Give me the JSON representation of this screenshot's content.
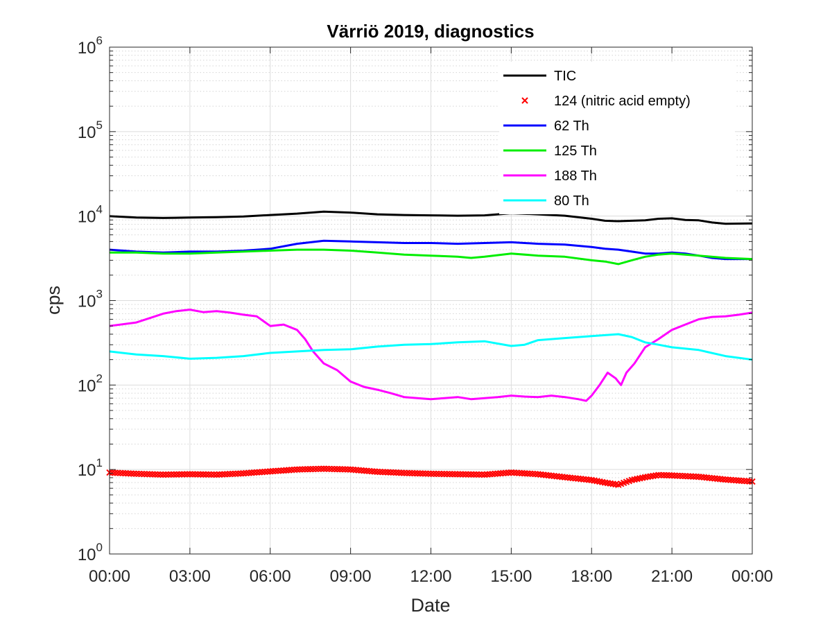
{
  "chart_data": {
    "type": "line",
    "title": "Värriö 2019, diagnostics",
    "xlabel": "Date",
    "ylabel": "cps",
    "yscale": "log",
    "ylim": [
      1,
      1000000
    ],
    "xlim": [
      0,
      24
    ],
    "grid": true,
    "legend_position": "top-right",
    "x_ticks": [
      0,
      3,
      6,
      9,
      12,
      15,
      18,
      21,
      24
    ],
    "x_tick_labels": [
      "00:00",
      "03:00",
      "06:00",
      "09:00",
      "12:00",
      "15:00",
      "18:00",
      "21:00",
      "00:00"
    ],
    "y_tick_exponents": [
      "0",
      "1",
      "2",
      "3",
      "4",
      "5",
      "6"
    ],
    "y_tick_base": "10",
    "series": [
      {
        "name": "TIC",
        "color": "#000000",
        "style": "line",
        "points": [
          [
            0,
            10000
          ],
          [
            1,
            9600
          ],
          [
            2,
            9500
          ],
          [
            3,
            9600
          ],
          [
            4,
            9700
          ],
          [
            5,
            9900
          ],
          [
            6,
            10300
          ],
          [
            7,
            10700
          ],
          [
            8,
            11300
          ],
          [
            9,
            11000
          ],
          [
            10,
            10500
          ],
          [
            11,
            10300
          ],
          [
            12,
            10200
          ],
          [
            13,
            10100
          ],
          [
            14,
            10200
          ],
          [
            15,
            10800
          ],
          [
            16,
            10500
          ],
          [
            17,
            10100
          ],
          [
            18,
            9300
          ],
          [
            18.5,
            8800
          ],
          [
            19,
            8700
          ],
          [
            20,
            8900
          ],
          [
            20.5,
            9300
          ],
          [
            21,
            9400
          ],
          [
            21.5,
            9000
          ],
          [
            22,
            8900
          ],
          [
            22.5,
            8400
          ],
          [
            23,
            8100
          ],
          [
            24,
            8200
          ]
        ]
      },
      {
        "name": "124 (nitric acid empty)",
        "color": "#ff0000",
        "style": "marker-x",
        "points": [
          [
            0,
            9.2
          ],
          [
            1,
            8.9
          ],
          [
            2,
            8.7
          ],
          [
            3,
            8.8
          ],
          [
            4,
            8.7
          ],
          [
            5,
            9.0
          ],
          [
            6,
            9.5
          ],
          [
            7,
            10.0
          ],
          [
            8,
            10.2
          ],
          [
            9,
            10.0
          ],
          [
            10,
            9.4
          ],
          [
            11,
            9.1
          ],
          [
            12,
            8.9
          ],
          [
            13,
            8.8
          ],
          [
            14,
            8.7
          ],
          [
            15,
            9.2
          ],
          [
            16,
            8.8
          ],
          [
            17,
            8.1
          ],
          [
            18,
            7.5
          ],
          [
            18.5,
            7.0
          ],
          [
            19,
            6.6
          ],
          [
            19.5,
            7.5
          ],
          [
            20,
            8.1
          ],
          [
            20.5,
            8.6
          ],
          [
            21,
            8.5
          ],
          [
            22,
            8.2
          ],
          [
            23,
            7.6
          ],
          [
            24,
            7.2
          ]
        ]
      },
      {
        "name": "62 Th",
        "color": "#0000ff",
        "style": "line",
        "points": [
          [
            0,
            4000
          ],
          [
            1,
            3800
          ],
          [
            2,
            3700
          ],
          [
            3,
            3800
          ],
          [
            4,
            3800
          ],
          [
            5,
            3900
          ],
          [
            6,
            4100
          ],
          [
            7,
            4700
          ],
          [
            8,
            5100
          ],
          [
            9,
            5000
          ],
          [
            10,
            4900
          ],
          [
            11,
            4800
          ],
          [
            12,
            4800
          ],
          [
            13,
            4700
          ],
          [
            14,
            4800
          ],
          [
            15,
            4900
          ],
          [
            16,
            4700
          ],
          [
            17,
            4600
          ],
          [
            18,
            4300
          ],
          [
            18.5,
            4100
          ],
          [
            19,
            4000
          ],
          [
            19.5,
            3800
          ],
          [
            20,
            3600
          ],
          [
            20.5,
            3600
          ],
          [
            21,
            3700
          ],
          [
            21.5,
            3600
          ],
          [
            22,
            3400
          ],
          [
            22.5,
            3200
          ],
          [
            23,
            3100
          ],
          [
            24,
            3100
          ]
        ]
      },
      {
        "name": "125 Th",
        "color": "#00ee00",
        "style": "line",
        "points": [
          [
            0,
            3700
          ],
          [
            1,
            3700
          ],
          [
            2,
            3600
          ],
          [
            3,
            3600
          ],
          [
            4,
            3700
          ],
          [
            5,
            3800
          ],
          [
            6,
            3900
          ],
          [
            7,
            4000
          ],
          [
            8,
            4000
          ],
          [
            9,
            3900
          ],
          [
            10,
            3700
          ],
          [
            11,
            3500
          ],
          [
            12,
            3400
          ],
          [
            13,
            3300
          ],
          [
            13.5,
            3200
          ],
          [
            14,
            3300
          ],
          [
            15,
            3600
          ],
          [
            16,
            3400
          ],
          [
            17,
            3300
          ],
          [
            18,
            3000
          ],
          [
            18.5,
            2900
          ],
          [
            19,
            2700
          ],
          [
            19.5,
            3000
          ],
          [
            20,
            3300
          ],
          [
            20.5,
            3500
          ],
          [
            21,
            3600
          ],
          [
            21.5,
            3500
          ],
          [
            22,
            3400
          ],
          [
            23,
            3200
          ],
          [
            24,
            3100
          ]
        ]
      },
      {
        "name": "188 Th",
        "color": "#ff00ff",
        "style": "line",
        "points": [
          [
            0,
            500
          ],
          [
            1,
            550
          ],
          [
            1.5,
            620
          ],
          [
            2,
            700
          ],
          [
            2.5,
            750
          ],
          [
            3,
            780
          ],
          [
            3.5,
            730
          ],
          [
            4,
            750
          ],
          [
            4.5,
            720
          ],
          [
            5,
            680
          ],
          [
            5.5,
            650
          ],
          [
            6,
            500
          ],
          [
            6.5,
            520
          ],
          [
            7,
            450
          ],
          [
            7.3,
            350
          ],
          [
            7.6,
            250
          ],
          [
            8,
            180
          ],
          [
            8.5,
            150
          ],
          [
            9,
            110
          ],
          [
            9.5,
            95
          ],
          [
            10,
            88
          ],
          [
            10.5,
            80
          ],
          [
            11,
            72
          ],
          [
            11.5,
            70
          ],
          [
            12,
            68
          ],
          [
            12.5,
            70
          ],
          [
            13,
            72
          ],
          [
            13.5,
            68
          ],
          [
            14,
            70
          ],
          [
            14.5,
            72
          ],
          [
            15,
            75
          ],
          [
            15.5,
            73
          ],
          [
            16,
            72
          ],
          [
            16.5,
            75
          ],
          [
            17,
            72
          ],
          [
            17.5,
            68
          ],
          [
            17.8,
            65
          ],
          [
            18,
            75
          ],
          [
            18.3,
            100
          ],
          [
            18.6,
            140
          ],
          [
            18.9,
            120
          ],
          [
            19.1,
            100
          ],
          [
            19.3,
            140
          ],
          [
            19.6,
            180
          ],
          [
            20,
            280
          ],
          [
            20.5,
            350
          ],
          [
            21,
            450
          ],
          [
            21.5,
            520
          ],
          [
            22,
            600
          ],
          [
            22.5,
            640
          ],
          [
            23,
            650
          ],
          [
            23.5,
            680
          ],
          [
            24,
            720
          ]
        ]
      },
      {
        "name": "80 Th",
        "color": "#00ffff",
        "style": "line",
        "points": [
          [
            0,
            250
          ],
          [
            1,
            230
          ],
          [
            2,
            220
          ],
          [
            3,
            205
          ],
          [
            4,
            210
          ],
          [
            5,
            220
          ],
          [
            6,
            240
          ],
          [
            7,
            250
          ],
          [
            8,
            260
          ],
          [
            9,
            265
          ],
          [
            10,
            285
          ],
          [
            11,
            300
          ],
          [
            12,
            305
          ],
          [
            13,
            320
          ],
          [
            14,
            330
          ],
          [
            15,
            290
          ],
          [
            15.5,
            300
          ],
          [
            16,
            340
          ],
          [
            17,
            360
          ],
          [
            18,
            380
          ],
          [
            19,
            400
          ],
          [
            19.5,
            370
          ],
          [
            20,
            320
          ],
          [
            20.5,
            300
          ],
          [
            21,
            280
          ],
          [
            22,
            260
          ],
          [
            23,
            220
          ],
          [
            24,
            200
          ]
        ]
      }
    ]
  }
}
